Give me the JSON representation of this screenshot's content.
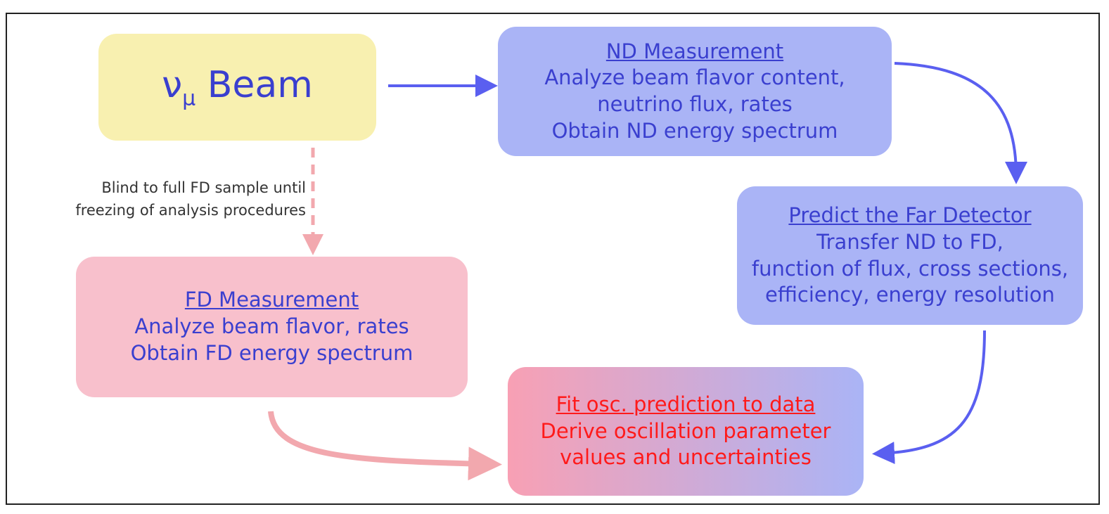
{
  "nodes": [
    {
      "symbol": "ν",
      "subscript": "μ",
      "text": "Beam"
    },
    {
      "title": "ND Measurement",
      "lines": [
        "Analyze beam flavor content,",
        "neutrino flux, rates",
        "Obtain ND energy spectrum"
      ]
    },
    {
      "title": "Predict the Far Detector",
      "lines": [
        "Transfer ND to FD,",
        "function of flux, cross sections,",
        "efficiency, energy resolution"
      ]
    },
    {
      "title": "FD Measurement",
      "lines": [
        "Analyze beam flavor, rates",
        "Obtain FD energy spectrum"
      ]
    },
    {
      "title": "Fit osc. prediction to data",
      "lines": [
        "Derive oscillation parameter",
        "values and uncertainties"
      ]
    }
  ],
  "annotation": {
    "lines": [
      "Blind to full FD sample until",
      "freezing of analysis procedures"
    ]
  }
}
